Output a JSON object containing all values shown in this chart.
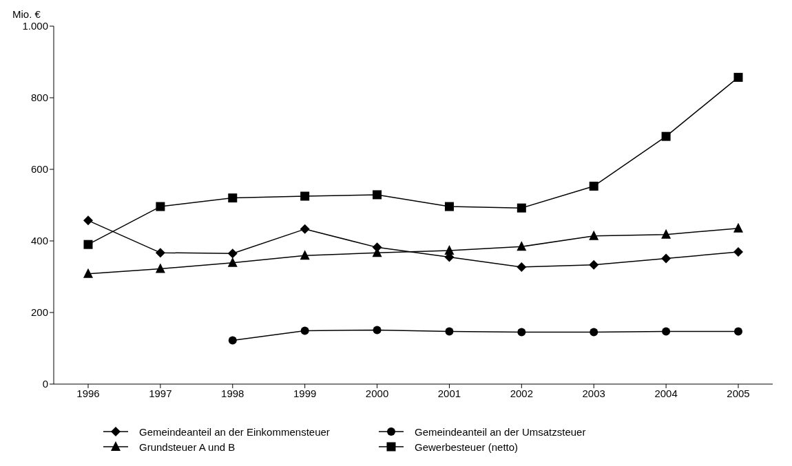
{
  "chart_data": {
    "type": "line",
    "ylabel": "Mio. €",
    "categories": [
      "1996",
      "1997",
      "1998",
      "1999",
      "2000",
      "2001",
      "2002",
      "2003",
      "2004",
      "2005"
    ],
    "series": [
      {
        "name": "Gemeindeanteil an der Einkommensteuer",
        "color": "#000000",
        "marker": "diamond",
        "values": [
          457,
          367,
          365,
          433,
          382,
          355,
          327,
          333,
          351,
          369
        ]
      },
      {
        "name": "Gemeindeanteil an der Umsatzsteuer",
        "color": "#000000",
        "marker": "circle",
        "values": [
          null,
          null,
          122,
          149,
          151,
          147,
          145,
          145,
          147,
          147
        ]
      },
      {
        "name": "Grundsteuer A und B",
        "color": "#000000",
        "marker": "triangle",
        "values": [
          308,
          322,
          339,
          359,
          367,
          373,
          384,
          414,
          418,
          435
        ]
      },
      {
        "name": "Gewerbesteuer (netto)",
        "color": "#000000",
        "marker": "square",
        "values": [
          390,
          496,
          520,
          525,
          529,
          496,
          492,
          553,
          692,
          857
        ]
      }
    ],
    "ylim": [
      0,
      1000
    ],
    "yticks": [
      0,
      200,
      400,
      600,
      800,
      {
        "value": 1000,
        "label": "1.000"
      }
    ],
    "grid": false,
    "legend": "bottom",
    "line_style": "solid"
  }
}
